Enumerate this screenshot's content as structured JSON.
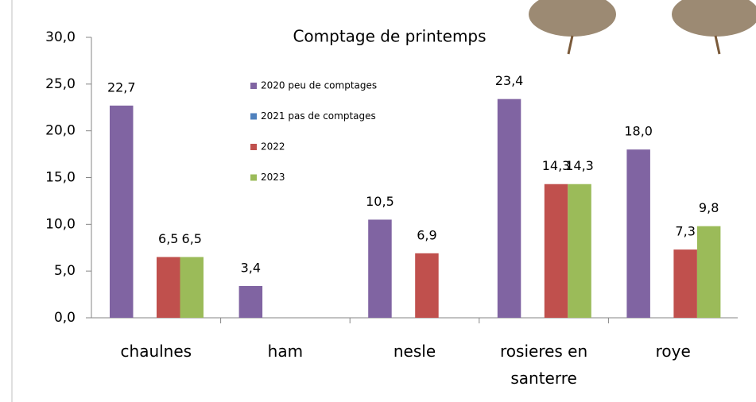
{
  "chart_data": {
    "type": "bar",
    "title": "Comptage de printemps",
    "categories": [
      "chaulnes",
      "ham",
      "nesle",
      "rosieres en santerre",
      "roye"
    ],
    "series": [
      {
        "name": "2020 peu de comptages",
        "color": "#8064a2",
        "values": [
          22.7,
          3.4,
          10.5,
          23.4,
          18.0
        ],
        "value_labels": [
          "22,7",
          "3,4",
          "10,5",
          "23,4",
          "18,0"
        ]
      },
      {
        "name": "2021 pas de comptages",
        "color": "#4f81bd",
        "values": [
          null,
          null,
          null,
          null,
          null
        ],
        "value_labels": [
          null,
          null,
          null,
          null,
          null
        ]
      },
      {
        "name": "2022",
        "color": "#c0504d",
        "values": [
          6.5,
          null,
          6.9,
          14.3,
          7.3
        ],
        "value_labels": [
          "6,5",
          null,
          "6,9",
          "14,3",
          "7,3"
        ]
      },
      {
        "name": "2023",
        "color": "#9bbb59",
        "values": [
          6.5,
          null,
          null,
          14.3,
          9.8
        ],
        "value_labels": [
          "6,5",
          null,
          null,
          "14,3",
          "9,8"
        ]
      }
    ],
    "ylim": [
      0,
      30
    ],
    "yticks": [
      {
        "value": 0,
        "label": "0,0"
      },
      {
        "value": 5,
        "label": "5,0"
      },
      {
        "value": 10,
        "label": "10,0"
      },
      {
        "value": 15,
        "label": "15,0"
      },
      {
        "value": 20,
        "label": "20,0"
      },
      {
        "value": 25,
        "label": "25,0"
      },
      {
        "value": 30,
        "label": "30,0"
      }
    ],
    "grid": false
  }
}
